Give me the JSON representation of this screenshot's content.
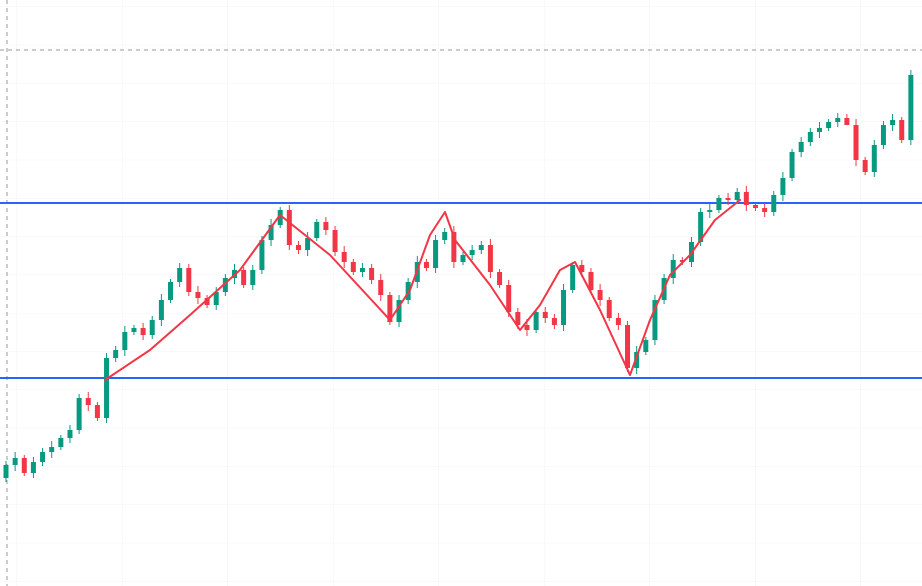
{
  "chart_data": {
    "type": "candlestick",
    "up_color": "#089981",
    "down_color": "#f23645",
    "ylim": [
      0,
      586
    ],
    "open": [
      108,
      121,
      128,
      113,
      124,
      134,
      139,
      148,
      156,
      188,
      181,
      168,
      228,
      236,
      254,
      258,
      251,
      266,
      286,
      304,
      318,
      294,
      288,
      281,
      294,
      308,
      316,
      301,
      316,
      346,
      361,
      376,
      341,
      336,
      348,
      364,
      356,
      334,
      324,
      314,
      318,
      306,
      291,
      264,
      286,
      304,
      324,
      318,
      346,
      354,
      324,
      331,
      336,
      341,
      314,
      301,
      274,
      261,
      256,
      274,
      268,
      261,
      296,
      321,
      314,
      296,
      286,
      268,
      261,
      218,
      234,
      246,
      286,
      308,
      326,
      324,
      344,
      374,
      376,
      388,
      386,
      394,
      381,
      378,
      374,
      391,
      408,
      434,
      444,
      454,
      458,
      464,
      468,
      461,
      426,
      414,
      441,
      461,
      466,
      446
    ],
    "high": [
      125,
      134,
      131,
      129,
      138,
      145,
      151,
      161,
      192,
      194,
      184,
      233,
      240,
      260,
      261,
      263,
      270,
      292,
      307,
      323,
      322,
      300,
      291,
      299,
      312,
      322,
      319,
      321,
      350,
      367,
      379,
      381,
      345,
      354,
      367,
      369,
      360,
      340,
      327,
      323,
      322,
      312,
      294,
      291,
      308,
      330,
      327,
      351,
      358,
      360,
      334,
      341,
      345,
      347,
      317,
      306,
      278,
      267,
      277,
      279,
      272,
      302,
      324,
      326,
      318,
      302,
      289,
      273,
      265,
      240,
      249,
      291,
      312,
      332,
      329,
      349,
      378,
      382,
      391,
      393,
      398,
      400,
      384,
      383,
      395,
      414,
      437,
      449,
      458,
      464,
      467,
      473,
      472,
      467,
      429,
      446,
      465,
      472,
      469,
      516
    ],
    "low": [
      104,
      115,
      110,
      108,
      120,
      128,
      136,
      143,
      152,
      175,
      165,
      163,
      224,
      230,
      251,
      246,
      247,
      260,
      283,
      299,
      290,
      282,
      278,
      276,
      290,
      302,
      298,
      296,
      312,
      340,
      358,
      336,
      332,
      330,
      345,
      351,
      330,
      318,
      311,
      309,
      302,
      285,
      261,
      259,
      282,
      298,
      315,
      313,
      342,
      318,
      321,
      326,
      332,
      308,
      298,
      269,
      257,
      250,
      253,
      263,
      257,
      255,
      293,
      309,
      292,
      280,
      265,
      256,
      214,
      212,
      231,
      241,
      282,
      302,
      321,
      319,
      340,
      368,
      373,
      381,
      382,
      375,
      375,
      369,
      370,
      385,
      405,
      429,
      440,
      448,
      455,
      459,
      464,
      420,
      411,
      409,
      437,
      455,
      443,
      441
    ],
    "close": [
      121,
      128,
      113,
      124,
      134,
      139,
      148,
      156,
      188,
      181,
      168,
      228,
      236,
      254,
      258,
      251,
      266,
      286,
      304,
      318,
      294,
      288,
      281,
      294,
      308,
      316,
      301,
      316,
      346,
      361,
      376,
      341,
      336,
      348,
      364,
      356,
      334,
      324,
      314,
      318,
      306,
      291,
      264,
      286,
      304,
      324,
      318,
      346,
      354,
      324,
      331,
      336,
      341,
      314,
      301,
      274,
      261,
      256,
      274,
      268,
      261,
      296,
      321,
      314,
      296,
      286,
      268,
      261,
      218,
      234,
      246,
      286,
      308,
      326,
      324,
      344,
      374,
      376,
      388,
      386,
      394,
      381,
      378,
      374,
      391,
      408,
      434,
      444,
      454,
      458,
      464,
      468,
      461,
      426,
      414,
      441,
      461,
      466,
      446,
      511
    ],
    "horizontal_lines": [
      {
        "value": 383,
        "color": "#2962ff"
      },
      {
        "value": 208,
        "color": "#2962ff"
      }
    ]
  }
}
